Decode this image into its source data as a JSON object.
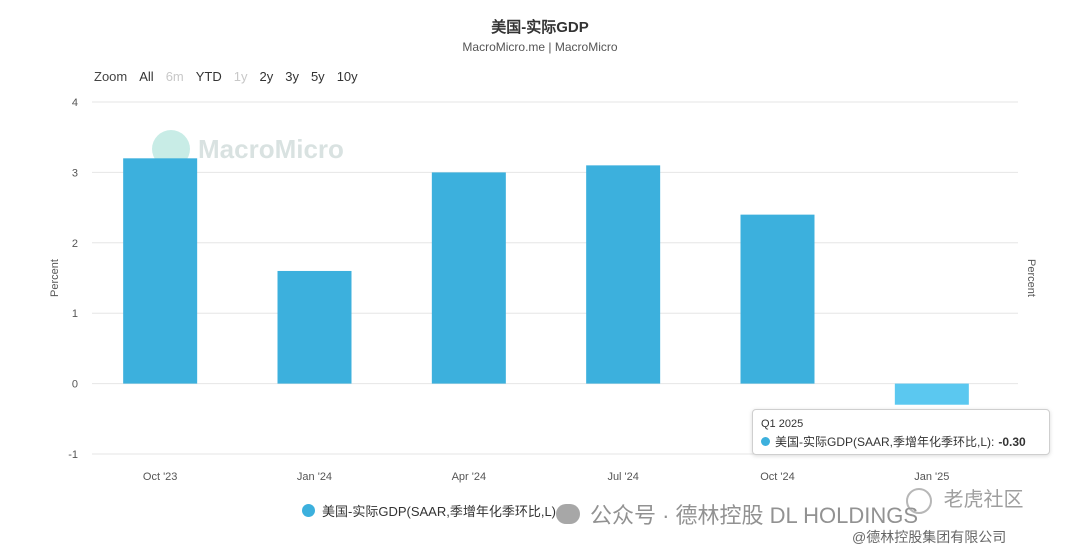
{
  "header": {
    "title": "美国-实际GDP",
    "subtitle": "MacroMicro.me | MacroMicro"
  },
  "zoom": {
    "label": "Zoom",
    "buttons": [
      {
        "label": "All",
        "enabled": true
      },
      {
        "label": "6m",
        "enabled": false
      },
      {
        "label": "YTD",
        "enabled": true
      },
      {
        "label": "1y",
        "enabled": false
      },
      {
        "label": "2y",
        "enabled": true
      },
      {
        "label": "3y",
        "enabled": true
      },
      {
        "label": "5y",
        "enabled": true
      },
      {
        "label": "10y",
        "enabled": true
      }
    ]
  },
  "watermark": {
    "text": "MacroMicro"
  },
  "chart_data": {
    "type": "bar",
    "categories": [
      "Oct '23",
      "Jan '24",
      "Apr '24",
      "Jul '24",
      "Oct '24",
      "Jan '25"
    ],
    "series": [
      {
        "name": "美国-实际GDP(SAAR,季增年化季环比,L)",
        "values": [
          3.2,
          1.6,
          3.0,
          3.1,
          2.4,
          -0.3
        ],
        "color": "#3cb0dd"
      }
    ],
    "ylabel": "Percent",
    "ylabel_right": "Percent",
    "ylim": [
      -1,
      4
    ],
    "yticks": [
      "-1",
      "0",
      "1",
      "2",
      "3",
      "4"
    ],
    "grid": true,
    "highlight_color": "#5bc8f0",
    "highlight_index": 5
  },
  "tooltip": {
    "period": "Q1 2025",
    "series_label": "美国-实际GDP(SAAR,季增年化季环比,L):",
    "value": "-0.30"
  },
  "legend": {
    "label": "美国-实际GDP(SAAR,季增年化季环比,L)"
  },
  "overlays": {
    "wechat": "公众号 · 德林控股 DL HOLDINGS",
    "corner": "老虎社区",
    "footer": "@德林控股集团有限公司"
  }
}
